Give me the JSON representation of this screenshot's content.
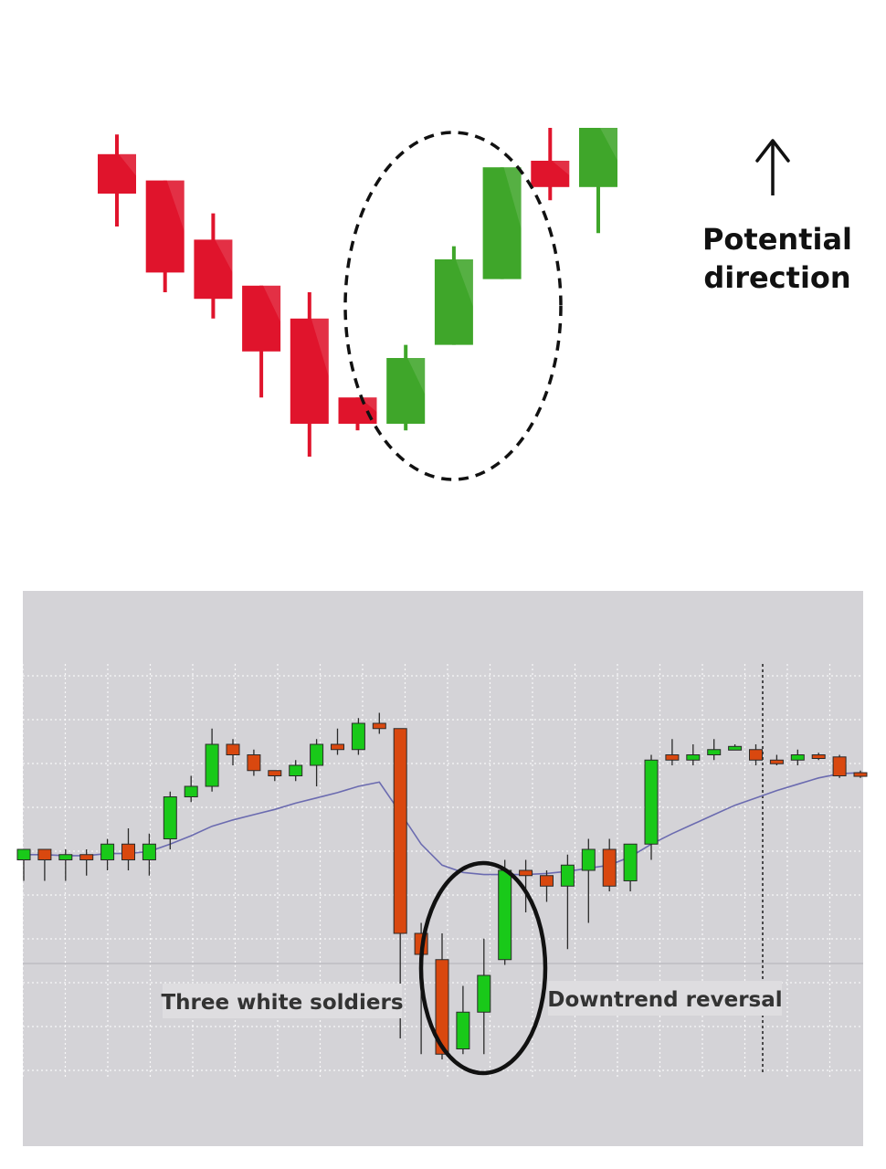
{
  "chart_data": [
    {
      "type": "candlestick",
      "title": "",
      "annotation": {
        "arrow": "up",
        "lines": [
          "Potential",
          "direction"
        ]
      },
      "highlight": "dashed ellipse around the three green candles",
      "colors": {
        "bearish": "#e0142c",
        "bullish": "#3fa62a"
      },
      "candles": [
        {
          "dir": "down",
          "open": 86,
          "close": 80,
          "high": 89,
          "low": 75
        },
        {
          "dir": "down",
          "open": 82,
          "close": 68,
          "high": 82,
          "low": 65
        },
        {
          "dir": "down",
          "open": 73,
          "close": 64,
          "high": 77,
          "low": 61
        },
        {
          "dir": "down",
          "open": 66,
          "close": 56,
          "high": 66,
          "low": 49
        },
        {
          "dir": "down",
          "open": 61,
          "close": 45,
          "high": 65,
          "low": 40
        },
        {
          "dir": "down",
          "open": 49,
          "close": 45,
          "high": 49,
          "low": 44
        },
        {
          "dir": "up",
          "open": 45,
          "close": 55,
          "high": 57,
          "low": 44
        },
        {
          "dir": "up",
          "open": 57,
          "close": 70,
          "high": 72,
          "low": 57
        },
        {
          "dir": "up",
          "open": 67,
          "close": 84,
          "high": 84,
          "low": 67
        },
        {
          "dir": "down",
          "open": 85,
          "close": 81,
          "high": 90,
          "low": 79
        },
        {
          "dir": "up",
          "open": 81,
          "close": 90,
          "high": 90,
          "low": 74
        }
      ]
    },
    {
      "type": "candlestick",
      "title": "",
      "labels": {
        "left": "Three white soldiers",
        "right": "Downtrend reversal"
      },
      "highlight": "solid ellipse around the three green candles at the bottom",
      "grid": true,
      "colors": {
        "bearish": "#d9480f",
        "bullish": "#19c919",
        "moving_average": "#6b6bb0",
        "background": "#d4d3d7"
      },
      "candles": [
        {
          "dir": "up",
          "open": 47,
          "close": 48,
          "high": 48,
          "low": 45
        },
        {
          "dir": "down",
          "open": 48,
          "close": 47,
          "high": 48,
          "low": 45
        },
        {
          "dir": "up",
          "open": 47,
          "close": 47.5,
          "high": 48,
          "low": 45
        },
        {
          "dir": "down",
          "open": 47.5,
          "close": 47,
          "high": 48,
          "low": 45.5
        },
        {
          "dir": "up",
          "open": 47,
          "close": 48.5,
          "high": 49,
          "low": 46
        },
        {
          "dir": "down",
          "open": 48.5,
          "close": 47,
          "high": 50,
          "low": 46
        },
        {
          "dir": "up",
          "open": 47,
          "close": 48.5,
          "high": 49.5,
          "low": 45.5
        },
        {
          "dir": "up",
          "open": 49,
          "close": 53,
          "high": 53.5,
          "low": 48
        },
        {
          "dir": "up",
          "open": 53,
          "close": 54,
          "high": 55,
          "low": 52.5
        },
        {
          "dir": "up",
          "open": 54,
          "close": 58,
          "high": 59.5,
          "low": 53.5
        },
        {
          "dir": "down",
          "open": 58,
          "close": 57,
          "high": 58.5,
          "low": 56
        },
        {
          "dir": "down",
          "open": 57,
          "close": 55.5,
          "high": 57.5,
          "low": 55
        },
        {
          "dir": "down",
          "open": 55.5,
          "close": 55,
          "high": 55.5,
          "low": 54.5
        },
        {
          "dir": "up",
          "open": 55,
          "close": 56,
          "high": 56.5,
          "low": 54.5
        },
        {
          "dir": "up",
          "open": 56,
          "close": 58,
          "high": 58.5,
          "low": 54
        },
        {
          "dir": "down",
          "open": 58,
          "close": 57.5,
          "high": 59.5,
          "low": 57
        },
        {
          "dir": "up",
          "open": 57.5,
          "close": 60,
          "high": 60.5,
          "low": 57
        },
        {
          "dir": "down",
          "open": 60,
          "close": 59.5,
          "high": 61,
          "low": 59
        },
        {
          "dir": "down",
          "open": 59.5,
          "close": 40,
          "high": 59.5,
          "low": 30
        },
        {
          "dir": "down",
          "open": 40,
          "close": 38,
          "high": 41,
          "low": 28.5
        },
        {
          "dir": "down",
          "open": 37.5,
          "close": 28.5,
          "high": 40,
          "low": 28
        },
        {
          "dir": "up",
          "open": 29,
          "close": 32.5,
          "high": 35,
          "low": 28.5
        },
        {
          "dir": "up",
          "open": 32.5,
          "close": 36,
          "high": 39.5,
          "low": 28.5
        },
        {
          "dir": "up",
          "open": 37.5,
          "close": 46,
          "high": 47,
          "low": 37
        },
        {
          "dir": "down",
          "open": 46,
          "close": 45.5,
          "high": 47,
          "low": 42
        },
        {
          "dir": "down",
          "open": 45.5,
          "close": 44.5,
          "high": 46,
          "low": 43
        },
        {
          "dir": "up",
          "open": 44.5,
          "close": 46.5,
          "high": 47.5,
          "low": 38.5
        },
        {
          "dir": "up",
          "open": 46,
          "close": 48,
          "high": 49,
          "low": 41
        },
        {
          "dir": "down",
          "open": 48,
          "close": 44.5,
          "high": 49,
          "low": 44
        },
        {
          "dir": "up",
          "open": 45,
          "close": 48.5,
          "high": 48.5,
          "low": 44
        },
        {
          "dir": "up",
          "open": 48.5,
          "close": 56.5,
          "high": 57,
          "low": 47
        },
        {
          "dir": "down",
          "open": 57,
          "close": 56.5,
          "high": 58.5,
          "low": 56
        },
        {
          "dir": "up",
          "open": 56.5,
          "close": 57,
          "high": 58,
          "low": 56
        },
        {
          "dir": "up",
          "open": 57,
          "close": 57.5,
          "high": 58.5,
          "low": 56.5
        },
        {
          "dir": "up",
          "open": 57.5,
          "close": 57.8,
          "high": 58,
          "low": 57.5
        },
        {
          "dir": "down",
          "open": 57.5,
          "close": 56.5,
          "high": 58,
          "low": 56
        },
        {
          "dir": "down",
          "open": 56.5,
          "close": 56.2,
          "high": 57,
          "low": 56
        },
        {
          "dir": "up",
          "open": 56.5,
          "close": 57,
          "high": 57.5,
          "low": 56
        },
        {
          "dir": "down",
          "open": 57,
          "close": 56.8,
          "high": 57.2,
          "low": 56.5
        },
        {
          "dir": "down",
          "open": 56.8,
          "close": 55,
          "high": 57,
          "low": 54.8
        },
        {
          "dir": "down",
          "open": 55.3,
          "close": 55,
          "high": 55.5,
          "low": 54.8
        }
      ],
      "moving_average": [
        47.5,
        47.5,
        47.4,
        47.4,
        47.6,
        47.6,
        47.8,
        48.5,
        49.3,
        50.2,
        50.8,
        51.3,
        51.8,
        52.4,
        52.9,
        53.4,
        54,
        54.4,
        51.5,
        48.5,
        46.5,
        45.8,
        45.6,
        45.6,
        45.6,
        45.7,
        45.9,
        46.2,
        46.5,
        47.3,
        48.5,
        49.5,
        50.4,
        51.3,
        52.2,
        52.9,
        53.6,
        54.2,
        54.8,
        55.2,
        55.3
      ]
    }
  ]
}
